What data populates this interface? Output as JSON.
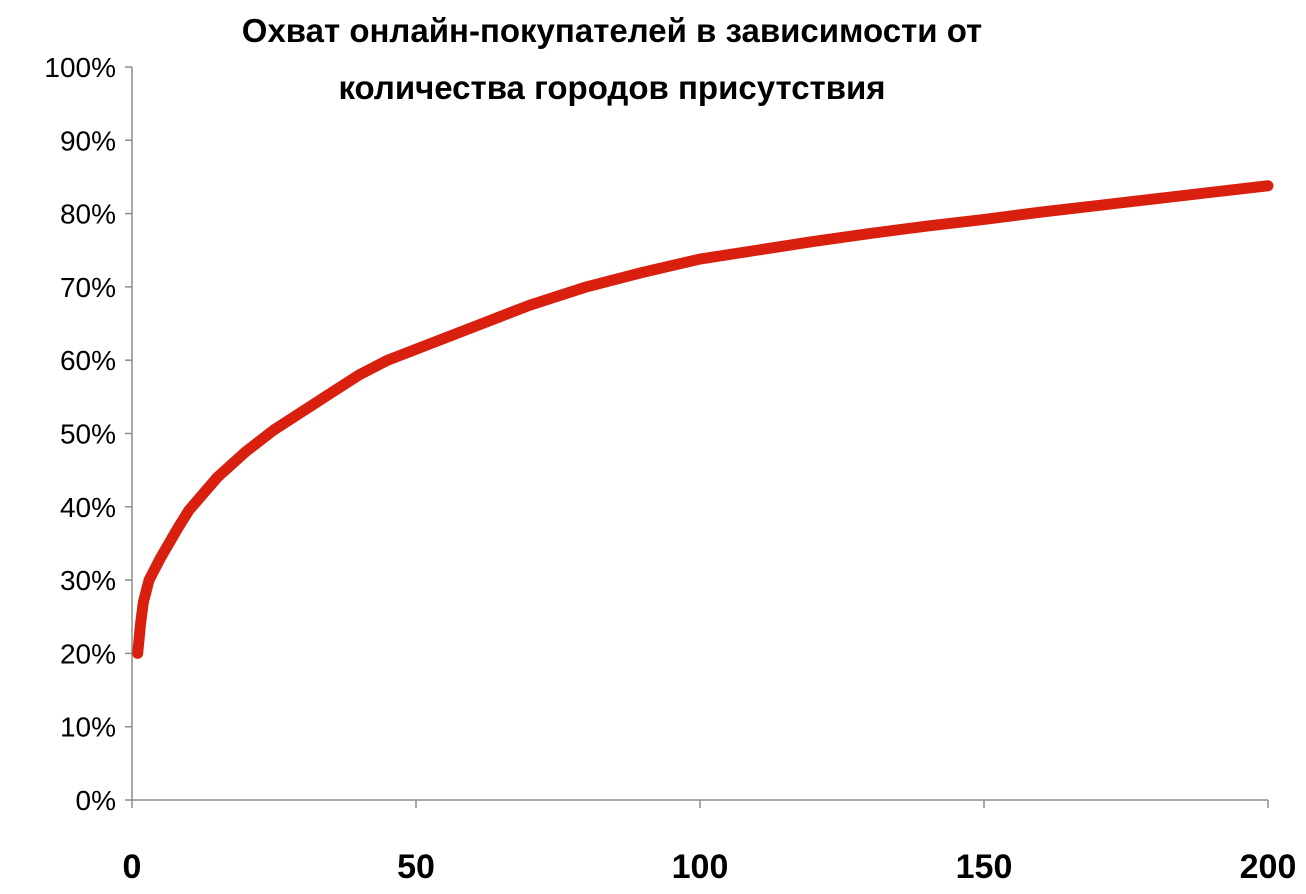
{
  "chart_data": {
    "type": "line",
    "title": "Охват онлайн-покупателей в зависимости от количества городов присутствия",
    "title_lines": [
      "Охват онлайн-покупателей в зависимости от",
      "количества городов присутствия"
    ],
    "xlabel": "",
    "ylabel": "",
    "xlim": [
      0,
      200
    ],
    "ylim": [
      0,
      100
    ],
    "x_ticks": [
      0,
      50,
      100,
      150,
      200
    ],
    "x_tick_labels": [
      "0",
      "50",
      "100",
      "150",
      "200"
    ],
    "y_ticks": [
      0,
      10,
      20,
      30,
      40,
      50,
      60,
      70,
      80,
      90,
      100
    ],
    "y_tick_labels": [
      "0%",
      "10%",
      "20%",
      "30%",
      "40%",
      "50%",
      "60%",
      "70%",
      "80%",
      "90%",
      "100%"
    ],
    "grid": false,
    "legend": "none",
    "series": [
      {
        "color": "#d9200f",
        "x": [
          1,
          1.5,
          2,
          3,
          5,
          8,
          10,
          15,
          20,
          25,
          30,
          35,
          40,
          45,
          50,
          60,
          70,
          80,
          90,
          100,
          110,
          120,
          130,
          140,
          150,
          160,
          170,
          180,
          190,
          200
        ],
        "y": [
          20,
          24,
          27,
          30,
          33,
          37,
          39.5,
          44,
          47.5,
          50.5,
          53,
          55.5,
          58,
          60,
          61.5,
          64.5,
          67.5,
          70,
          72,
          73.8,
          75,
          76.2,
          77.3,
          78.3,
          79.2,
          80.2,
          81.1,
          82,
          82.9,
          83.8
        ]
      }
    ]
  }
}
